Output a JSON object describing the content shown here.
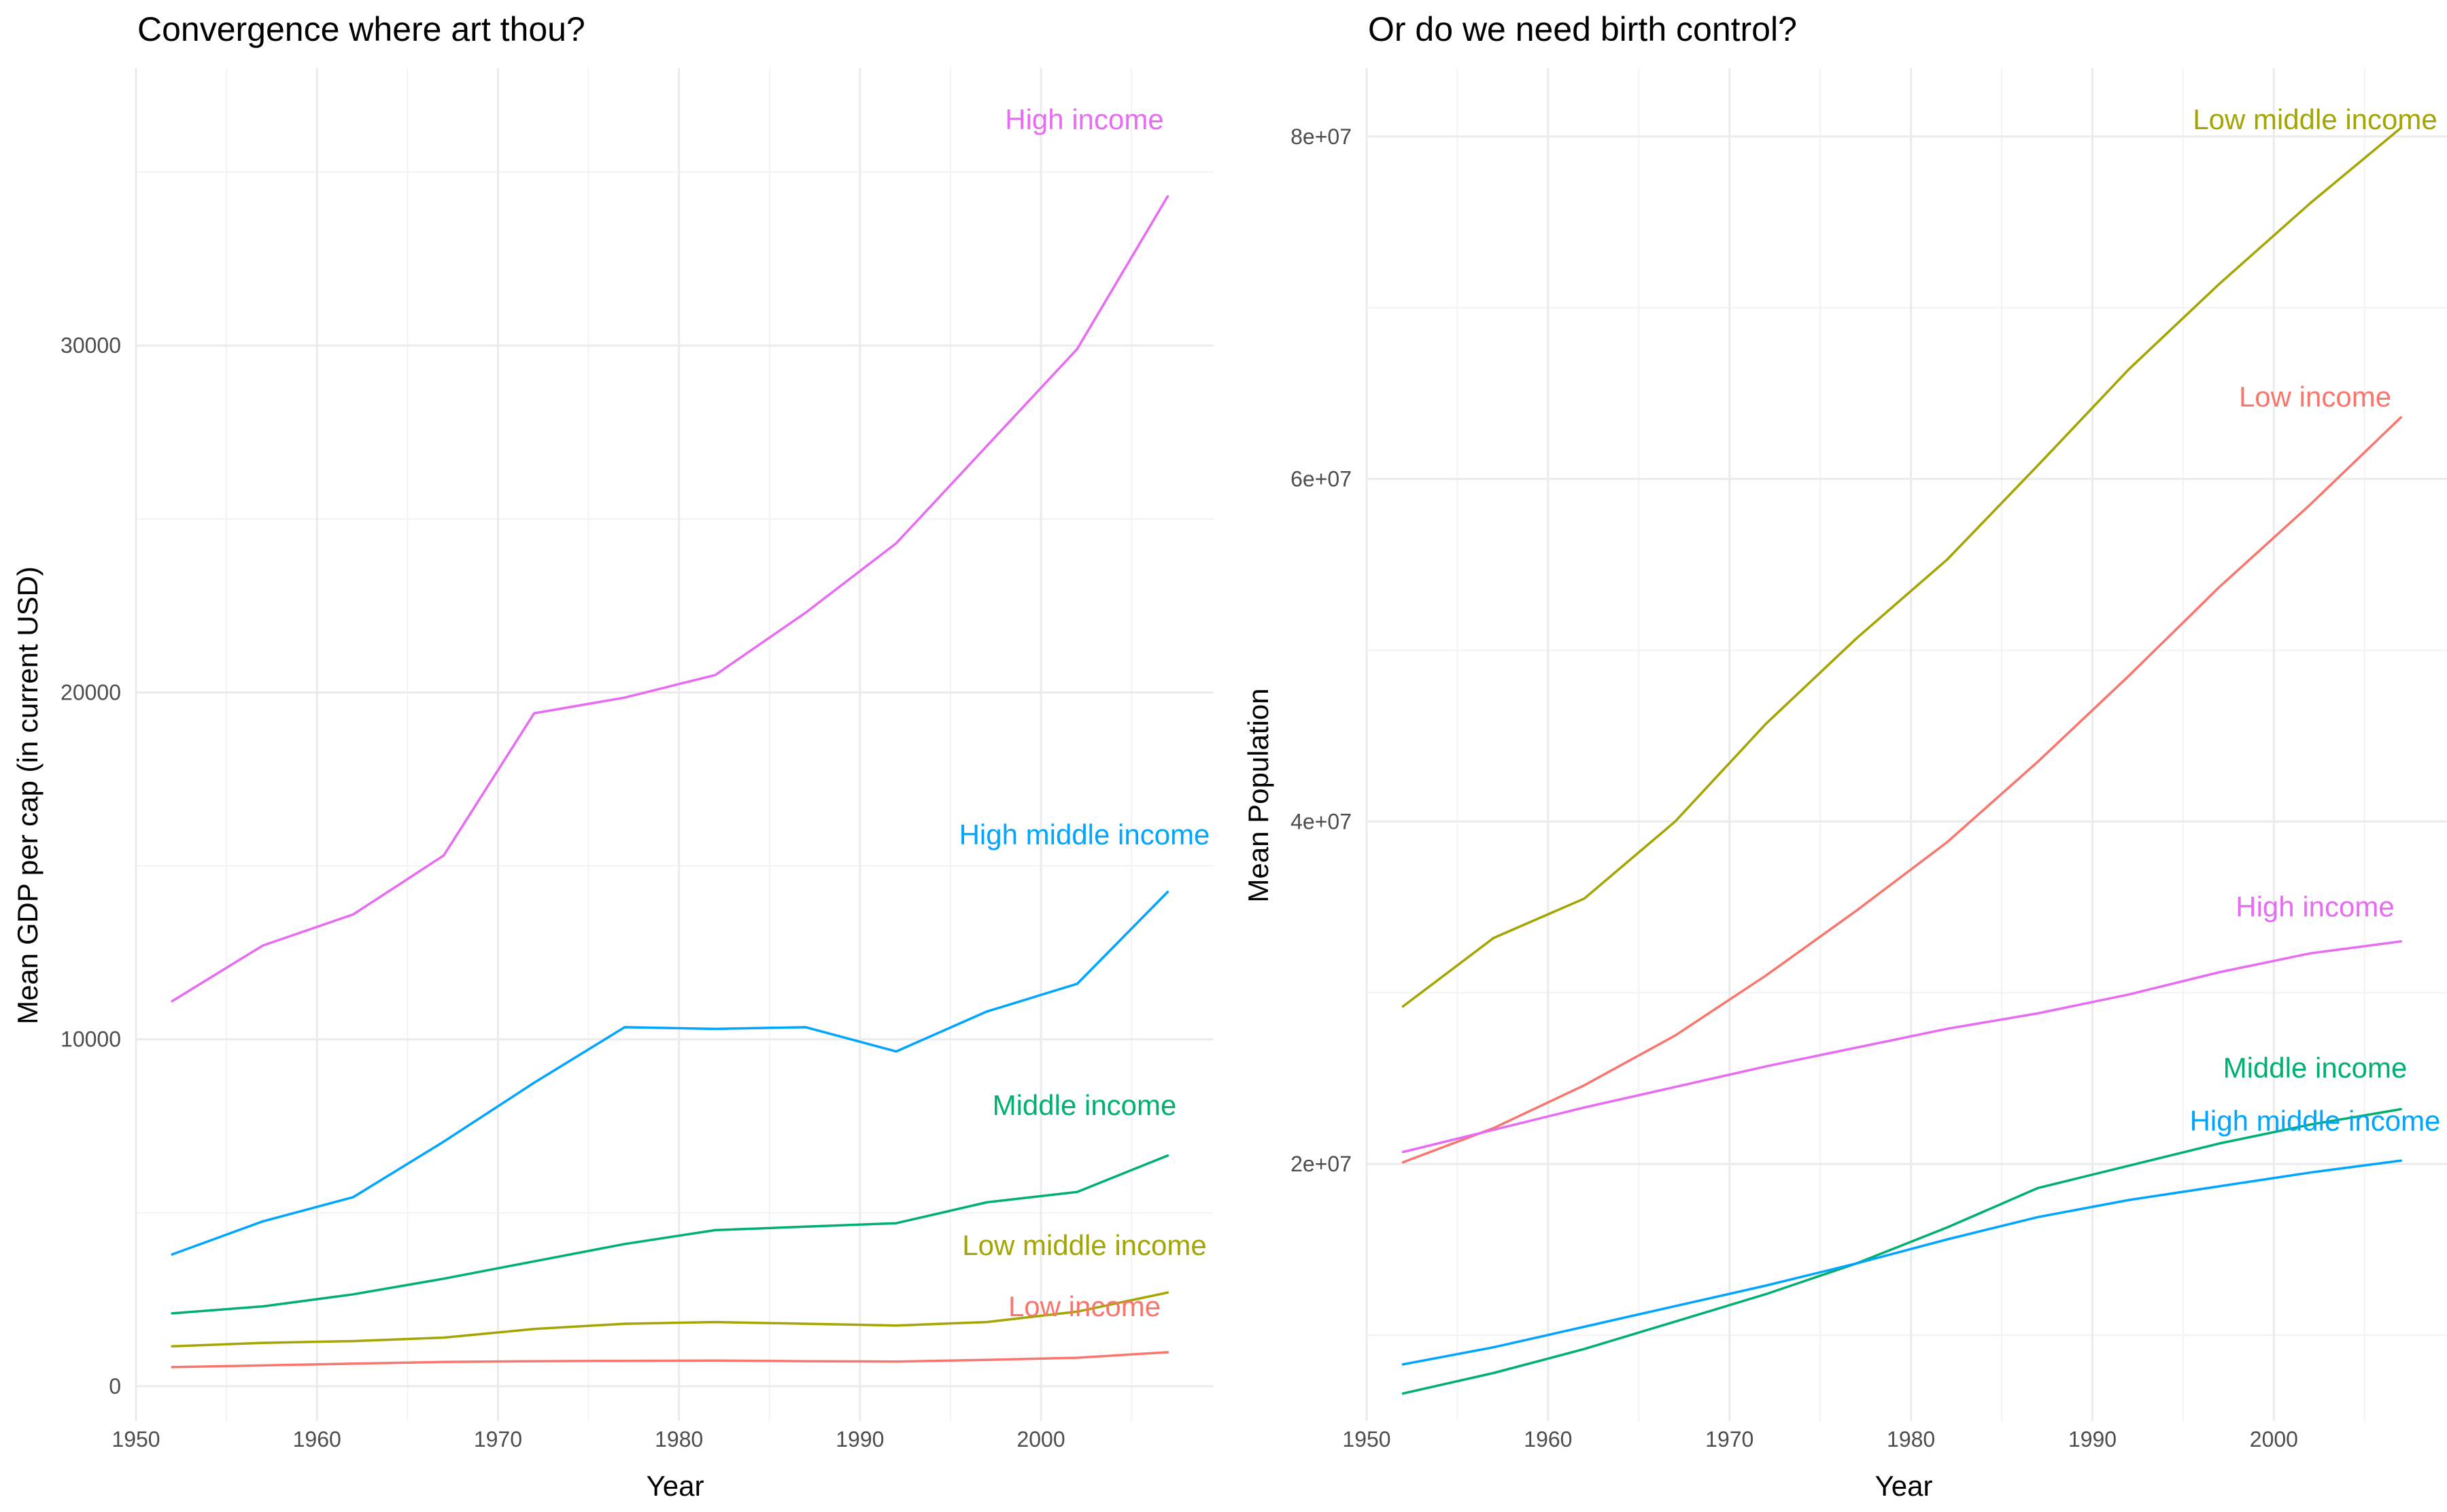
{
  "chart_data": [
    {
      "type": "line",
      "title": "Convergence where art thou?",
      "xlabel": "Year",
      "ylabel": "Mean GDP per cap (in current USD)",
      "xlim": [
        1950,
        2010
      ],
      "ylim": [
        0,
        35000
      ],
      "x_ticks": [
        1950,
        1960,
        1970,
        1980,
        1990,
        2000
      ],
      "y_ticks": [
        0,
        10000,
        20000,
        30000
      ],
      "x_tick_labels": [
        "1950",
        "1960",
        "1970",
        "1980",
        "1990",
        "2000"
      ],
      "y_tick_labels": [
        "0",
        "10000",
        "20000",
        "30000"
      ],
      "grid": true,
      "x": [
        1952,
        1957,
        1962,
        1967,
        1972,
        1977,
        1982,
        1987,
        1992,
        1997,
        2002,
        2007
      ],
      "series": [
        {
          "name": "High income",
          "color": "#E76BF3",
          "values": [
            11100,
            12700,
            13600,
            15300,
            19400,
            19850,
            20500,
            22300,
            24300,
            27100,
            29900,
            34300
          ]
        },
        {
          "name": "High middle income",
          "color": "#00A5FF",
          "values": [
            3800,
            4750,
            5450,
            7050,
            8750,
            10350,
            10300,
            10350,
            9650,
            10800,
            11600,
            14250
          ]
        },
        {
          "name": "Middle income",
          "color": "#00B06F",
          "values": [
            2100,
            2300,
            2650,
            3100,
            3600,
            4100,
            4500,
            4600,
            4700,
            5300,
            5600,
            6650
          ]
        },
        {
          "name": "Low middle income",
          "color": "#A3A500",
          "values": [
            1150,
            1250,
            1300,
            1400,
            1650,
            1800,
            1850,
            1800,
            1750,
            1850,
            2150,
            2700
          ]
        },
        {
          "name": "Low income",
          "color": "#F8766D",
          "values": [
            550,
            600,
            650,
            700,
            720,
            730,
            740,
            720,
            710,
            760,
            820,
            980
          ]
        }
      ]
    },
    {
      "type": "line",
      "title": "Or do we need birth control?",
      "xlabel": "Year",
      "ylabel": "Mean Population",
      "xlim": [
        1950,
        2010
      ],
      "ylim": [
        0,
        80000000
      ],
      "x_ticks": [
        1950,
        1960,
        1970,
        1980,
        1990,
        2000
      ],
      "y_ticks": [
        20000000,
        40000000,
        60000000,
        80000000
      ],
      "x_tick_labels": [
        "1950",
        "1960",
        "1970",
        "1980",
        "1990",
        "2000"
      ],
      "y_tick_labels": [
        "2e+07",
        "4e+07",
        "6e+07",
        "8e+07"
      ],
      "grid": true,
      "x": [
        1952,
        1957,
        1962,
        1967,
        1972,
        1977,
        1982,
        1987,
        1992,
        1997,
        2002,
        2007
      ],
      "series": [
        {
          "name": "Low middle income",
          "color": "#A3A500",
          "values": [
            29200000,
            33200000,
            35500000,
            40000000,
            45700000,
            50700000,
            55300000,
            60800000,
            66400000,
            71400000,
            76100000,
            80500000
          ]
        },
        {
          "name": "Low income",
          "color": "#F8766D",
          "values": [
            20100000,
            22100000,
            24600000,
            27500000,
            31000000,
            34800000,
            38800000,
            43500000,
            48500000,
            53700000,
            58500000,
            63600000
          ]
        },
        {
          "name": "High income",
          "color": "#E76BF3",
          "values": [
            20700000,
            22000000,
            23300000,
            24500000,
            25700000,
            26800000,
            27900000,
            28800000,
            29900000,
            31200000,
            32300000,
            33000000
          ]
        },
        {
          "name": "Middle income",
          "color": "#00B06F",
          "values": [
            6600000,
            7800000,
            9200000,
            10800000,
            12400000,
            14200000,
            16300000,
            18600000,
            19900000,
            21200000,
            22300000,
            23200000
          ]
        },
        {
          "name": "High middle income",
          "color": "#00A5FF",
          "values": [
            8300000,
            9300000,
            10500000,
            11700000,
            12900000,
            14200000,
            15600000,
            16900000,
            17900000,
            18700000,
            19500000,
            20200000
          ]
        }
      ]
    }
  ]
}
